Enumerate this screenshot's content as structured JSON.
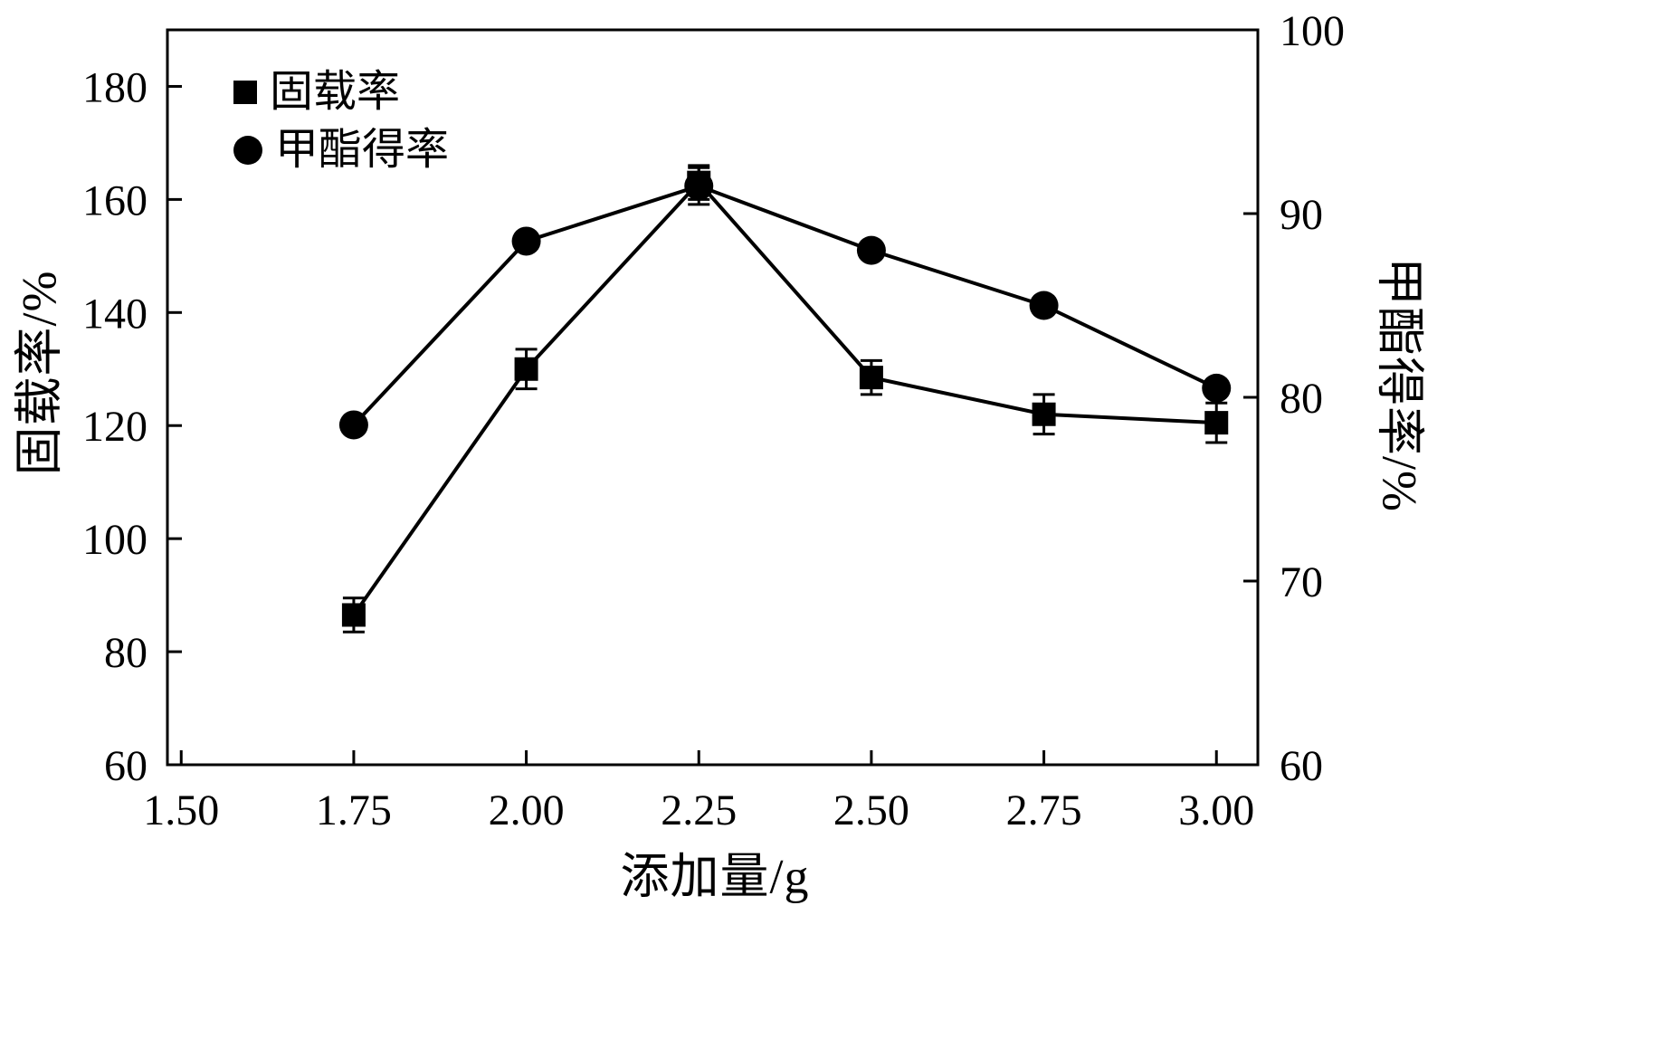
{
  "figure": {
    "background": "#ffffff",
    "axis_color": "#000000"
  },
  "chart_data": {
    "type": "line",
    "title": "",
    "xlabel": "添加量/g",
    "ylabel_left": "固载率/%",
    "ylabel_right": "甲酯得率/%",
    "xlim": [
      1.48,
      3.06
    ],
    "ylim_left": [
      60,
      190
    ],
    "ylim_right": [
      60,
      100
    ],
    "xticks": [
      "1.50",
      "1.75",
      "2.00",
      "2.25",
      "2.50",
      "2.75",
      "3.00"
    ],
    "yticks_left": [
      "60",
      "80",
      "100",
      "120",
      "140",
      "160",
      "180"
    ],
    "yticks_right": [
      "60",
      "70",
      "80",
      "90",
      "100"
    ],
    "grid": false,
    "legend_position": "top-left-inside",
    "line_color": "#000000",
    "x": [
      1.75,
      2.0,
      2.25,
      2.5,
      2.75,
      3.0
    ],
    "series": [
      {
        "name": "固载率",
        "axis": "left",
        "marker": "square",
        "values": [
          86.5,
          130,
          163,
          128.5,
          122,
          120.5
        ],
        "errors": [
          3,
          3.5,
          3,
          3,
          3.5,
          3.5
        ]
      },
      {
        "name": "甲酯得率",
        "axis": "right",
        "marker": "circle",
        "values": [
          78.5,
          88.5,
          91.5,
          88,
          85,
          80.5
        ],
        "errors": [
          0,
          0,
          1,
          0,
          0,
          0
        ]
      }
    ]
  }
}
